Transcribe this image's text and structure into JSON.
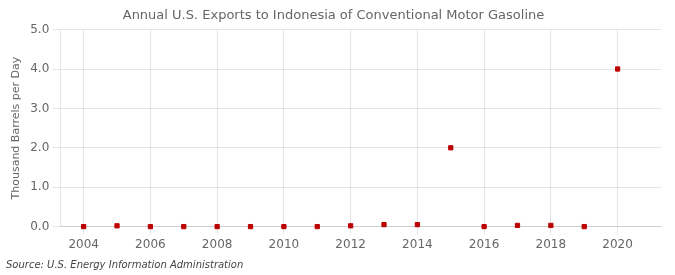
{
  "chart_data": {
    "type": "scatter",
    "title": "Annual U.S. Exports to Indonesia of Conventional Motor Gasoline",
    "ylabel": "Thousand Barrels per Day",
    "source": "Source: U.S. Energy Information Administration",
    "x": [
      2004,
      2005,
      2006,
      2007,
      2008,
      2009,
      2010,
      2011,
      2012,
      2013,
      2014,
      2015,
      2016,
      2017,
      2018,
      2019,
      2020
    ],
    "values": [
      0.0,
      0.02,
      0.0,
      0.0,
      0.0,
      0.0,
      0.0,
      0.0,
      0.02,
      0.05,
      0.05,
      2.0,
      0.0,
      0.03,
      0.03,
      0.0,
      4.0
    ],
    "color": "#bb0000",
    "marker": "square",
    "xlim": [
      2003.3,
      2021.3
    ],
    "xticks": [
      2004,
      2006,
      2008,
      2010,
      2012,
      2014,
      2016,
      2018,
      2020
    ],
    "ylim": [
      0.0,
      5.0
    ],
    "yticks": [
      {
        "value": 0.0,
        "label": "0.0"
      },
      {
        "value": 1.0,
        "label": "1.0"
      },
      {
        "value": 2.0,
        "label": "2.0"
      },
      {
        "value": 3.0,
        "label": "3.0"
      },
      {
        "value": 4.0,
        "label": "4.0"
      },
      {
        "value": 5.0,
        "label": "5.0"
      }
    ],
    "grid": true
  }
}
